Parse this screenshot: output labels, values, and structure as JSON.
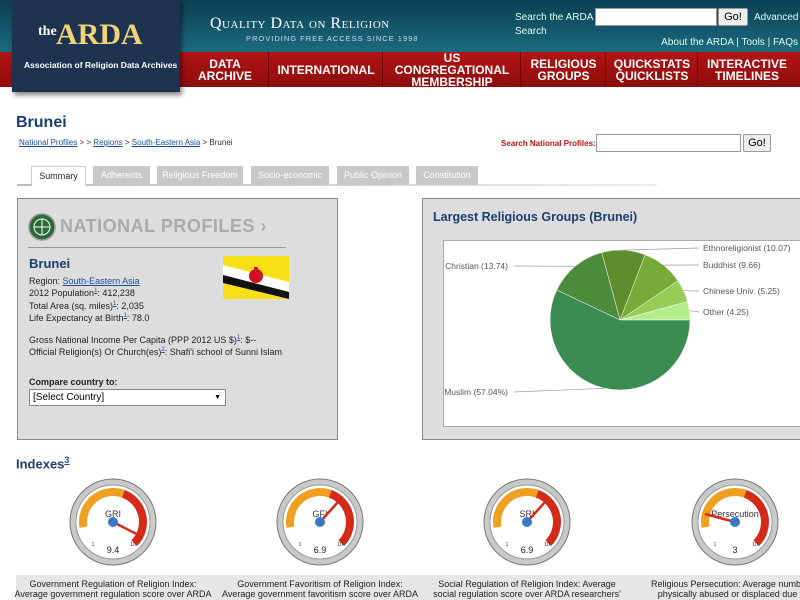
{
  "header": {
    "logo_the": "the",
    "logo_name": "ARDA",
    "logo_sub": "Association of Religion Data Archives",
    "tagline": "Quality Data on Religion",
    "tagline_sub": "PROVIDING FREE ACCESS SINCE 1998",
    "search_label": "Search the ARDA",
    "search_button": "Go!",
    "advanced": "Advanced Search",
    "links": [
      "About the ARDA",
      "Tools",
      "FAQs"
    ],
    "link_sep": "|"
  },
  "nav": [
    "DATA ARCHIVE",
    "INTERNATIONAL",
    "US CONGREGATIONAL MEMBERSHIP",
    "RELIGIOUS GROUPS",
    "QUICKSTATS QUICKLISTS",
    "INTERACTIVE TIMELINES"
  ],
  "page_title": "Brunei",
  "breadcrumb": {
    "links": [
      "National Profiles",
      "Regions",
      "South-Eastern Asia"
    ],
    "separators": [
      "> >",
      ">",
      ">"
    ],
    "current": "Brunei"
  },
  "np_search": {
    "label": "Search National Profiles:",
    "button": "Go!"
  },
  "tabs": [
    "Summary",
    "Adherents",
    "Religious Freedom",
    "Socio-economic",
    "Public Opinion",
    "Constitution"
  ],
  "profile": {
    "panel_title": "NATIONAL PROFILES ›",
    "country": "Brunei",
    "region_label": "Region:",
    "region": "South-Eastern Asia",
    "facts": [
      {
        "label": "2012 Population",
        "note": "1",
        "rest": ": 412,238"
      },
      {
        "label": "Total Area (sq. miles)",
        "note": "1",
        "rest": ": 2,035"
      },
      {
        "label": "Life Expectancy at Birth",
        "note": "1",
        "rest": ": 78.0"
      },
      {
        "label": "Gross National Income Per Capita (PPP 2012 US $)",
        "note": "1",
        "rest": ": $--"
      },
      {
        "label": "Official Religion(s) Or Church(es)",
        "note": "2",
        "rest": ": Shafi'i school of Sunni Islam"
      }
    ],
    "compare_label": "Compare country to:",
    "compare_select": "[Select Country]"
  },
  "religious_groups": {
    "type": "pie",
    "title": "Largest Religious Groups (Brunei)",
    "slices": [
      {
        "label": "Other (4.25)",
        "value": 4.25,
        "color": "#b3ee8c"
      },
      {
        "label": "Chinese Univ. (5.25)",
        "value": 5.25,
        "color": "#98cc58"
      },
      {
        "label": "Buddhist (9.66)",
        "value": 9.66,
        "color": "#78aa3a"
      },
      {
        "label": "Ethnoreligionist (10.07)",
        "value": 10.07,
        "color": "#5f8c2c"
      },
      {
        "label": "Christian (13.74)",
        "value": 13.74,
        "color": "#4d8c3c"
      },
      {
        "label": "Muslim (57.04%)",
        "value": 57.04,
        "color": "#3a8c52"
      }
    ]
  },
  "indexes": {
    "title": "Indexes",
    "note": "3",
    "scale": [
      1,
      10
    ],
    "gauges": [
      {
        "abbr": "GRI",
        "value": 9.4,
        "desc": [
          "Government Regulation of Religion Index:",
          "Average government regulation score over ARDA"
        ]
      },
      {
        "abbr": "GFI",
        "value": 6.9,
        "desc": [
          "Government Favoritism of Religion Index:",
          "Average government favoritism score over ARDA"
        ]
      },
      {
        "abbr": "SRI",
        "value": 6.9,
        "desc": [
          "Social Regulation of Religion Index: Average",
          "social regulation score over ARDA researchers'"
        ]
      },
      {
        "abbr": "Persecution",
        "value": 3,
        "desc": [
          "Religious Persecution: Average number of",
          "physically abused or displaced due to t"
        ]
      }
    ]
  }
}
